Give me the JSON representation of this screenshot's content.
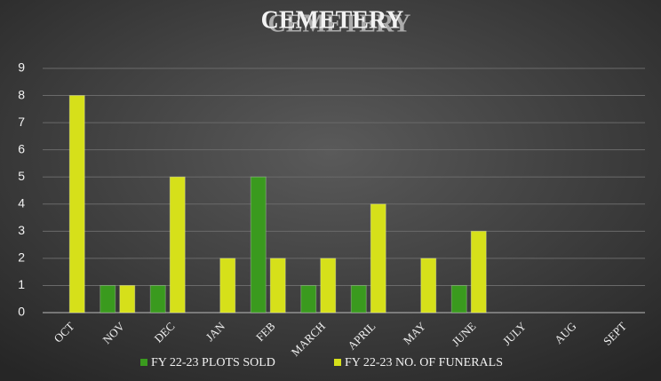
{
  "chart_data": {
    "type": "bar",
    "title": "CEMETERY",
    "categories": [
      "OCT",
      "NOV",
      "DEC",
      "JAN",
      "FEB",
      "MARCH",
      "APRIL",
      "MAY",
      "JUNE",
      "JULY",
      "AUG",
      "SEPT"
    ],
    "series": [
      {
        "name": "FY 22-23 PLOTS SOLD",
        "color": "#3a9a1e",
        "values": [
          0,
          1,
          1,
          0,
          5,
          1,
          1,
          0,
          1,
          0,
          0,
          0
        ]
      },
      {
        "name": "FY 22-23 NO. OF FUNERALS",
        "color": "#d6e01a",
        "values": [
          8,
          1,
          5,
          2,
          2,
          2,
          4,
          2,
          3,
          0,
          0,
          0
        ]
      }
    ],
    "ylim": [
      0,
      9
    ],
    "yticks": [
      0,
      1,
      2,
      3,
      4,
      5,
      6,
      7,
      8,
      9
    ],
    "grid": true,
    "legend": "bottom"
  }
}
